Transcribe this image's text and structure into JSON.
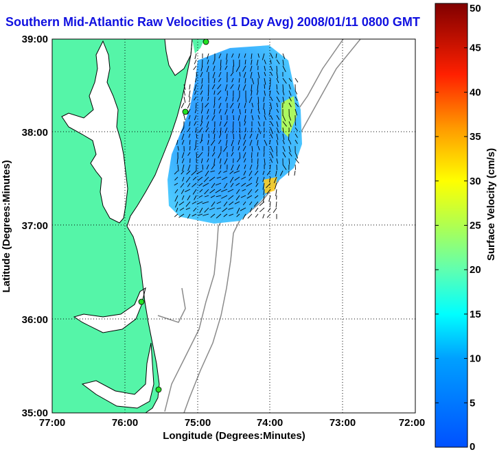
{
  "title": "Southern Mid-Atlantic Raw Velocities (1 Day Avg) 2008/01/11 0800 GMT",
  "x_axis": {
    "label": "Longitude (Degrees:Minutes)",
    "ticks": [
      "77:00",
      "76:00",
      "75:00",
      "74:00",
      "73:00",
      "72:00"
    ]
  },
  "y_axis": {
    "label": "Latitude (Degrees:Minutes)",
    "ticks": [
      "39:00",
      "38:00",
      "37:00",
      "36:00",
      "35:00"
    ]
  },
  "colorbar": {
    "label": "Surface Velocity (cm/s)",
    "ticks": [
      "0",
      "5",
      "10",
      "15",
      "20",
      "25",
      "30",
      "35",
      "40",
      "45",
      "50"
    ],
    "min": 0,
    "max": 50,
    "colormap": "jet"
  },
  "colors": {
    "land": "#55f5a8",
    "water": "#ffffff",
    "title": "#1010e0",
    "bathymetry": "#8a8a8a",
    "station": "#22e022"
  },
  "map": {
    "lon_range": [
      -77,
      -72
    ],
    "lat_range": [
      35,
      39
    ],
    "grid": "dotted",
    "stations": [
      {
        "lon": -74.88,
        "lat": 38.97
      },
      {
        "lon": -75.15,
        "lat": 38.22
      },
      {
        "lon": -75.72,
        "lat": 36.18
      },
      {
        "lon": -75.47,
        "lat": 35.25
      }
    ]
  }
}
